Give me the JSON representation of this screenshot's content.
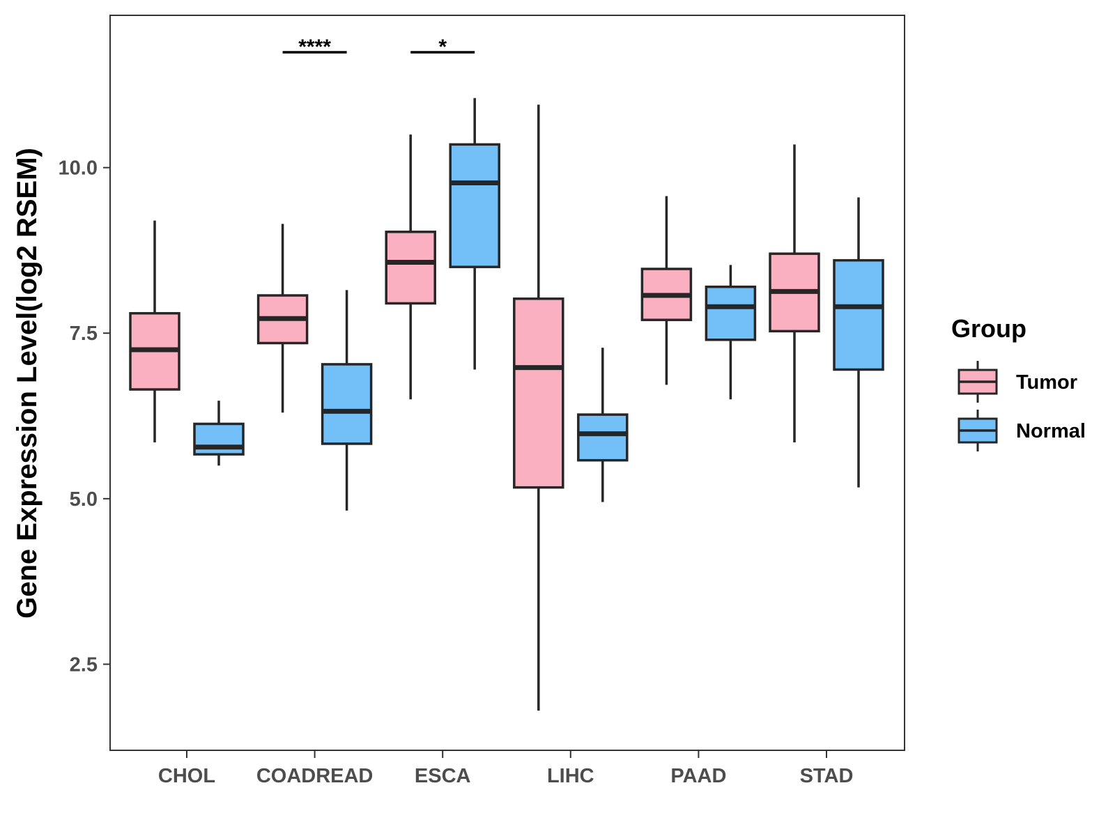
{
  "chart_data": {
    "type": "boxplot",
    "title": "",
    "xlabel": "",
    "ylabel": "Gene Expression Level(log2 RSEM)",
    "ylim": [
      1.2,
      12.3
    ],
    "yticks": [
      2.5,
      5.0,
      7.5,
      10.0
    ],
    "ytick_labels": [
      "2.5",
      "5.0",
      "7.5",
      "10.0"
    ],
    "categories": [
      "CHOL",
      "COADREAD",
      "ESCA",
      "LIHC",
      "PAAD",
      "STAD"
    ],
    "legend": {
      "title": "Group",
      "position": "right"
    },
    "series": [
      {
        "name": "Tumor",
        "color": "#FBB0C2",
        "boxes": [
          {
            "min": 5.85,
            "q1": 6.65,
            "median": 7.25,
            "q3": 7.8,
            "max": 9.2
          },
          {
            "min": 6.3,
            "q1": 7.35,
            "median": 7.72,
            "q3": 8.07,
            "max": 9.15
          },
          {
            "min": 6.5,
            "q1": 7.95,
            "median": 8.57,
            "q3": 9.03,
            "max": 10.5
          },
          {
            "min": 1.8,
            "q1": 5.17,
            "median": 6.98,
            "q3": 8.02,
            "max": 10.95
          },
          {
            "min": 6.72,
            "q1": 7.7,
            "median": 8.07,
            "q3": 8.47,
            "max": 9.57
          },
          {
            "min": 5.85,
            "q1": 7.53,
            "median": 8.13,
            "q3": 8.7,
            "max": 10.35
          }
        ]
      },
      {
        "name": "Normal",
        "color": "#73C0F8",
        "boxes": [
          {
            "min": 5.5,
            "q1": 5.67,
            "median": 5.78,
            "q3": 6.13,
            "max": 6.48
          },
          {
            "min": 4.82,
            "q1": 5.83,
            "median": 6.32,
            "q3": 7.03,
            "max": 8.15
          },
          {
            "min": 6.95,
            "q1": 8.5,
            "median": 9.77,
            "q3": 10.35,
            "max": 11.05
          },
          {
            "min": 4.95,
            "q1": 5.58,
            "median": 5.98,
            "q3": 6.27,
            "max": 7.28
          },
          {
            "min": 6.5,
            "q1": 7.4,
            "median": 7.9,
            "q3": 8.2,
            "max": 8.53
          },
          {
            "min": 5.17,
            "q1": 6.95,
            "median": 7.9,
            "q3": 8.6,
            "max": 9.55
          }
        ]
      }
    ],
    "annotations": [
      {
        "category": "COADREAD",
        "label": "****"
      },
      {
        "category": "ESCA",
        "label": "*"
      }
    ],
    "grid": false
  }
}
